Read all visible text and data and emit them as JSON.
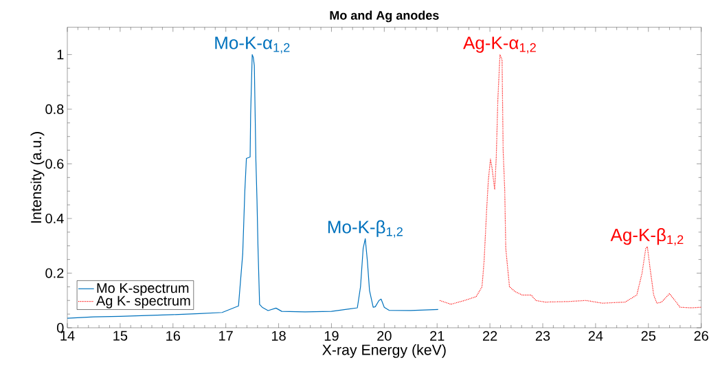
{
  "chart_data": {
    "type": "line",
    "title": "Mo and Ag anodes",
    "xlabel": "X-ray Energy (keV)",
    "ylabel": "Intensity (a.u.)",
    "xlim": [
      14,
      26
    ],
    "ylim": [
      0,
      1.1
    ],
    "xticks": [
      14,
      15,
      16,
      17,
      18,
      19,
      20,
      21,
      22,
      23,
      24,
      25,
      26
    ],
    "yticks": [
      0,
      0.2,
      0.4,
      0.6,
      0.8,
      1
    ],
    "grid": false,
    "legend": "bottom left",
    "marker": "none",
    "series": [
      {
        "name": "Mo K-spectrum",
        "color": "#0072bd",
        "line_style": "solid",
        "x": [
          14.0,
          14.5,
          15.0,
          15.5,
          16.0,
          16.5,
          16.93,
          17.24,
          17.32,
          17.36,
          17.39,
          17.46,
          17.47,
          17.5,
          17.52,
          17.54,
          17.57,
          17.59,
          17.61,
          17.64,
          17.69,
          17.8,
          17.95,
          18.06,
          18.5,
          19.0,
          19.49,
          19.55,
          19.6,
          19.64,
          19.68,
          19.72,
          19.79,
          19.83,
          19.9,
          19.94,
          20.0,
          20.09,
          20.5,
          21.02
        ],
        "values": [
          0.035,
          0.04,
          0.042,
          0.045,
          0.048,
          0.052,
          0.056,
          0.08,
          0.27,
          0.5,
          0.62,
          0.625,
          0.78,
          1.0,
          0.99,
          0.96,
          0.61,
          0.47,
          0.29,
          0.085,
          0.075,
          0.063,
          0.072,
          0.06,
          0.058,
          0.06,
          0.073,
          0.15,
          0.29,
          0.326,
          0.245,
          0.137,
          0.075,
          0.077,
          0.1,
          0.105,
          0.075,
          0.064,
          0.063,
          0.067
        ]
      },
      {
        "name": "Ag K- spectrum",
        "color": "#ff0000",
        "line_style": "dotted",
        "x": [
          21.05,
          21.26,
          21.52,
          21.74,
          21.85,
          21.89,
          21.94,
          21.97,
          22.01,
          22.04,
          22.09,
          22.12,
          22.15,
          22.19,
          22.23,
          22.25,
          22.28,
          22.3,
          22.37,
          22.48,
          22.61,
          22.78,
          22.87,
          23.04,
          23.48,
          23.82,
          24.13,
          24.56,
          24.78,
          24.88,
          24.95,
          24.98,
          25.03,
          25.1,
          25.16,
          25.25,
          25.4,
          25.51,
          25.6,
          25.81,
          26.0
        ],
        "values": [
          0.1,
          0.086,
          0.1,
          0.114,
          0.15,
          0.245,
          0.44,
          0.54,
          0.617,
          0.585,
          0.506,
          0.625,
          0.836,
          1.0,
          0.98,
          0.65,
          0.506,
          0.29,
          0.15,
          0.132,
          0.12,
          0.12,
          0.1,
          0.094,
          0.096,
          0.1,
          0.09,
          0.094,
          0.12,
          0.2,
          0.29,
          0.297,
          0.22,
          0.12,
          0.09,
          0.094,
          0.125,
          0.098,
          0.075,
          0.073,
          0.075
        ]
      }
    ],
    "annotations": [
      {
        "text": "Mo-K-α$_{1,2}$",
        "x": 17.5,
        "y": 1.0
      },
      {
        "text": "Mo-K-β$_{1,2}$",
        "x": 19.64,
        "y": 0.326
      },
      {
        "text": "Ag-K-α$_{1,2}$",
        "x": 22.19,
        "y": 1.0
      },
      {
        "text": "Ag-K-β$_{1,2}$",
        "x": 24.98,
        "y": 0.297
      }
    ]
  }
}
